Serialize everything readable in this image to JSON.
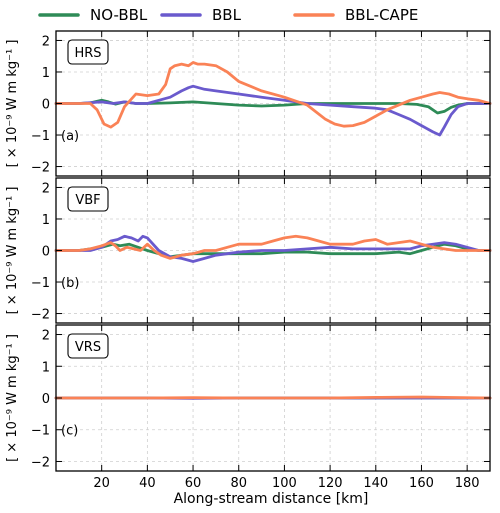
{
  "chart_data": {
    "type": "line",
    "colors": {
      "NO-BBL": "#2e8b57",
      "BBL": "#6a5acd",
      "BBL-CAPE": "#fa8256"
    },
    "legend": {
      "placement": "top",
      "entries": [
        "NO-BBL",
        "BBL",
        "BBL-CAPE"
      ]
    },
    "xlabel": "Along-stream distance [km]",
    "xlim": [
      0,
      190
    ],
    "xticks": [
      20,
      40,
      60,
      80,
      100,
      120,
      140,
      160,
      180
    ],
    "ylabel": "[ × 10⁻⁹ W m kg⁻¹ ]",
    "ylim": [
      -2.3,
      2.3
    ],
    "yticks": [
      -2,
      -1,
      0,
      1,
      2
    ],
    "grid": true,
    "panels": [
      {
        "label": "(a)",
        "title": "HRS",
        "series": [
          {
            "name": "NO-BBL",
            "x": [
              0,
              10,
              15,
              20,
              23,
              26,
              30,
              35,
              40,
              50,
              60,
              70,
              80,
              90,
              100,
              110,
              120,
              130,
              140,
              150,
              158,
              163,
              167,
              170,
              173,
              176,
              180,
              185,
              190
            ],
            "y": [
              0,
              0,
              0.02,
              0.1,
              0.05,
              -0.02,
              0.05,
              0,
              0,
              0.02,
              0.05,
              0,
              -0.05,
              -0.08,
              -0.05,
              0,
              0,
              0,
              0,
              0,
              -0.03,
              -0.1,
              -0.3,
              -0.25,
              -0.12,
              -0.05,
              0,
              0,
              0
            ]
          },
          {
            "name": "BBL",
            "x": [
              0,
              10,
              20,
              25,
              30,
              35,
              40,
              45,
              50,
              55,
              58,
              60,
              65,
              70,
              80,
              90,
              100,
              110,
              120,
              130,
              140,
              145,
              150,
              155,
              160,
              165,
              168,
              170,
              173,
              176,
              180,
              190
            ],
            "y": [
              0,
              0,
              0.05,
              0,
              0.05,
              0,
              0,
              0.1,
              0.2,
              0.4,
              0.5,
              0.55,
              0.45,
              0.4,
              0.3,
              0.2,
              0.1,
              0,
              -0.05,
              -0.1,
              -0.15,
              -0.2,
              -0.35,
              -0.5,
              -0.7,
              -0.9,
              -1.0,
              -0.75,
              -0.35,
              -0.1,
              0,
              0
            ]
          },
          {
            "name": "BBL-CAPE",
            "x": [
              0,
              10,
              15,
              18,
              21,
              24,
              27,
              30,
              35,
              40,
              45,
              48,
              50,
              52,
              55,
              58,
              60,
              62,
              65,
              70,
              75,
              80,
              90,
              100,
              110,
              118,
              122,
              126,
              130,
              135,
              140,
              145,
              150,
              155,
              160,
              165,
              168,
              172,
              176,
              180,
              185,
              190
            ],
            "y": [
              0,
              0,
              0,
              -0.2,
              -0.65,
              -0.75,
              -0.6,
              -0.1,
              0.3,
              0.25,
              0.3,
              0.6,
              1.1,
              1.2,
              1.25,
              1.2,
              1.3,
              1.25,
              1.25,
              1.2,
              1.0,
              0.7,
              0.4,
              0.2,
              -0.05,
              -0.5,
              -0.65,
              -0.72,
              -0.7,
              -0.6,
              -0.4,
              -0.2,
              -0.05,
              0.1,
              0.2,
              0.3,
              0.35,
              0.3,
              0.2,
              0.15,
              0.1,
              0
            ]
          }
        ]
      },
      {
        "label": "(b)",
        "title": "VBF",
        "series": [
          {
            "name": "NO-BBL",
            "x": [
              0,
              10,
              15,
              20,
              25,
              28,
              32,
              36,
              40,
              45,
              50,
              55,
              60,
              70,
              80,
              90,
              100,
              110,
              120,
              130,
              140,
              150,
              155,
              160,
              165,
              170,
              175,
              180,
              185,
              190
            ],
            "y": [
              0,
              0,
              0.05,
              0.1,
              0.2,
              0.15,
              0.2,
              0.1,
              0,
              -0.1,
              -0.2,
              -0.15,
              -0.1,
              -0.1,
              -0.1,
              -0.1,
              -0.05,
              -0.05,
              -0.1,
              -0.1,
              -0.1,
              -0.05,
              -0.1,
              0,
              0.1,
              0.2,
              0.15,
              0.05,
              0,
              0
            ]
          },
          {
            "name": "BBL",
            "x": [
              0,
              10,
              15,
              20,
              24,
              27,
              30,
              33,
              36,
              38,
              40,
              45,
              50,
              55,
              60,
              65,
              70,
              75,
              80,
              90,
              100,
              110,
              120,
              130,
              140,
              150,
              155,
              160,
              165,
              170,
              175,
              180,
              185,
              190
            ],
            "y": [
              0,
              0,
              0,
              0.1,
              0.3,
              0.35,
              0.45,
              0.4,
              0.3,
              0.45,
              0.4,
              0,
              -0.2,
              -0.25,
              -0.35,
              -0.25,
              -0.15,
              -0.1,
              -0.05,
              0,
              0,
              0.05,
              0.1,
              0.05,
              0.05,
              0.05,
              0.05,
              0.15,
              0.2,
              0.25,
              0.2,
              0.1,
              0,
              0
            ]
          },
          {
            "name": "BBL-CAPE",
            "x": [
              0,
              10,
              15,
              20,
              24,
              26,
              28,
              31,
              34,
              37,
              40,
              43,
              46,
              50,
              55,
              60,
              65,
              70,
              75,
              80,
              85,
              90,
              95,
              100,
              105,
              110,
              115,
              120,
              125,
              130,
              135,
              140,
              145,
              150,
              155,
              160,
              165,
              170,
              175,
              180,
              185,
              190
            ],
            "y": [
              0,
              0,
              0.05,
              0.15,
              0.25,
              0.15,
              0,
              0.1,
              0.05,
              0,
              0.2,
              0,
              -0.15,
              -0.25,
              -0.15,
              -0.1,
              0,
              0,
              0.1,
              0.2,
              0.2,
              0.2,
              0.3,
              0.4,
              0.45,
              0.4,
              0.3,
              0.2,
              0.2,
              0.2,
              0.3,
              0.35,
              0.2,
              0.25,
              0.3,
              0.2,
              0.1,
              0.05,
              0,
              0,
              0,
              0
            ]
          }
        ]
      },
      {
        "label": "(c)",
        "title": "VRS",
        "series": [
          {
            "name": "NO-BBL",
            "x": [
              0,
              190
            ],
            "y": [
              0,
              0
            ]
          },
          {
            "name": "BBL",
            "x": [
              0,
              40,
              60,
              80,
              120,
              160,
              190
            ],
            "y": [
              0,
              0,
              -0.01,
              0,
              0,
              0,
              0
            ]
          },
          {
            "name": "BBL-CAPE",
            "x": [
              0,
              40,
              60,
              80,
              120,
              140,
              160,
              170,
              190
            ],
            "y": [
              0,
              0,
              0.01,
              0,
              0,
              0.02,
              0.03,
              0.02,
              0
            ]
          }
        ]
      }
    ]
  }
}
